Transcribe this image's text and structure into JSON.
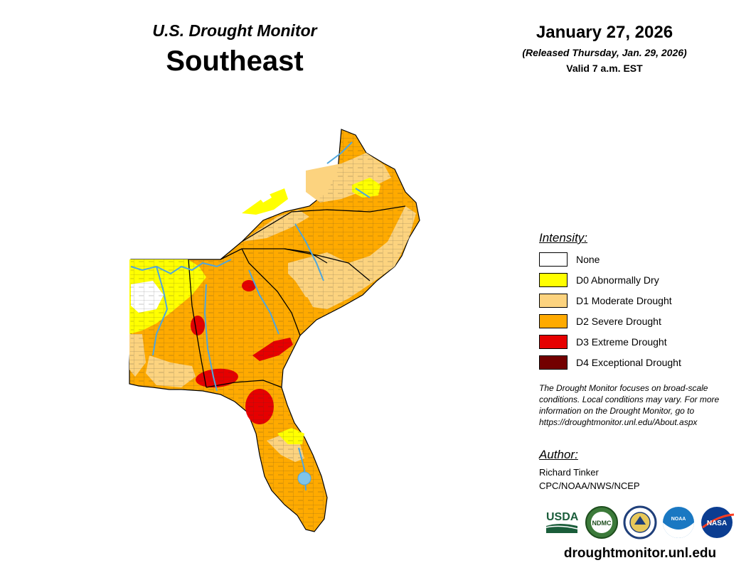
{
  "header": {
    "subtitle": "U.S. Drought Monitor",
    "region": "Southeast",
    "date": "January 27, 2026",
    "released": "(Released Thursday, Jan. 29, 2026)",
    "valid": "Valid 7 a.m. EST"
  },
  "legend": {
    "title": "Intensity:",
    "items": [
      {
        "label": "None",
        "color": "#ffffff"
      },
      {
        "label": "D0 Abnormally Dry",
        "color": "#ffff00"
      },
      {
        "label": "D1 Moderate Drought",
        "color": "#fcd37f"
      },
      {
        "label": "D2 Severe Drought",
        "color": "#ffaa00"
      },
      {
        "label": "D3 Extreme Drought",
        "color": "#e60000"
      },
      {
        "label": "D4 Exceptional Drought",
        "color": "#730000"
      }
    ]
  },
  "note": "The Drought Monitor focuses on broad-scale conditions. Local conditions may vary. For more information on the Drought Monitor, go to https://droughtmonitor.unl.edu/About.aspx",
  "author": {
    "title": "Author:",
    "name": "Richard Tinker",
    "org": "CPC/NOAA/NWS/NCEP"
  },
  "logos": {
    "usda": "USDA",
    "ndmc": "NDMC",
    "noaa": "NOAA",
    "nasa": "NASA"
  },
  "website": "droughtmonitor.unl.edu",
  "map_colors": {
    "river": "#4fa6dc",
    "border": "#000000"
  }
}
